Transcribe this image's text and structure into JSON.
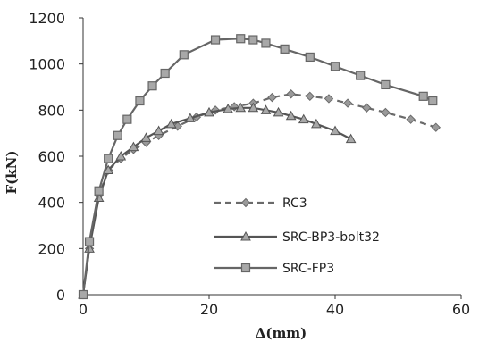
{
  "chart_data": {
    "type": "line",
    "title": "",
    "xlabel": "Δ(mm)",
    "ylabel": "F(kN)",
    "xlim": [
      0,
      60
    ],
    "ylim": [
      0,
      1200
    ],
    "xticks": [
      "0",
      "20",
      "40",
      "60"
    ],
    "yticks": [
      "0",
      "200",
      "400",
      "600",
      "800",
      "1000",
      "1200"
    ],
    "grid": false,
    "legend_position": "center",
    "series": [
      {
        "name": "RC3",
        "line_style": "dashed",
        "marker": "diamond",
        "color": "#6a6a6a",
        "points": [
          [
            0,
            0
          ],
          [
            1,
            200
          ],
          [
            2.5,
            430
          ],
          [
            4,
            540
          ],
          [
            6,
            590
          ],
          [
            8,
            630
          ],
          [
            10,
            660
          ],
          [
            12,
            690
          ],
          [
            15,
            730
          ],
          [
            18,
            770
          ],
          [
            21,
            800
          ],
          [
            24,
            815
          ],
          [
            27,
            830
          ],
          [
            30,
            855
          ],
          [
            33,
            870
          ],
          [
            36,
            860
          ],
          [
            39,
            850
          ],
          [
            42,
            830
          ],
          [
            45,
            810
          ],
          [
            48,
            790
          ],
          [
            52,
            760
          ],
          [
            56,
            725
          ]
        ]
      },
      {
        "name": "SRC-BP3-bolt32",
        "line_style": "solid",
        "marker": "triangle",
        "color": "#555555",
        "points": [
          [
            0,
            0
          ],
          [
            1,
            200
          ],
          [
            2.5,
            420
          ],
          [
            4,
            540
          ],
          [
            6,
            600
          ],
          [
            8,
            640
          ],
          [
            10,
            680
          ],
          [
            12,
            710
          ],
          [
            14,
            740
          ],
          [
            17,
            765
          ],
          [
            20,
            790
          ],
          [
            23,
            805
          ],
          [
            25,
            810
          ],
          [
            27,
            810
          ],
          [
            29,
            800
          ],
          [
            31,
            790
          ],
          [
            33,
            775
          ],
          [
            35,
            760
          ],
          [
            37,
            740
          ],
          [
            40,
            710
          ],
          [
            42.5,
            675
          ]
        ]
      },
      {
        "name": "SRC-FP3",
        "line_style": "solid",
        "marker": "square",
        "color": "#666666",
        "points": [
          [
            0,
            0
          ],
          [
            1,
            230
          ],
          [
            2.5,
            450
          ],
          [
            4,
            590
          ],
          [
            5.5,
            690
          ],
          [
            7,
            760
          ],
          [
            9,
            840
          ],
          [
            11,
            905
          ],
          [
            13,
            960
          ],
          [
            16,
            1040
          ],
          [
            21,
            1105
          ],
          [
            25,
            1110
          ],
          [
            27,
            1105
          ],
          [
            29,
            1090
          ],
          [
            32,
            1065
          ],
          [
            36,
            1030
          ],
          [
            40,
            990
          ],
          [
            44,
            950
          ],
          [
            48,
            910
          ],
          [
            54,
            860
          ],
          [
            55.5,
            840
          ]
        ]
      }
    ]
  }
}
